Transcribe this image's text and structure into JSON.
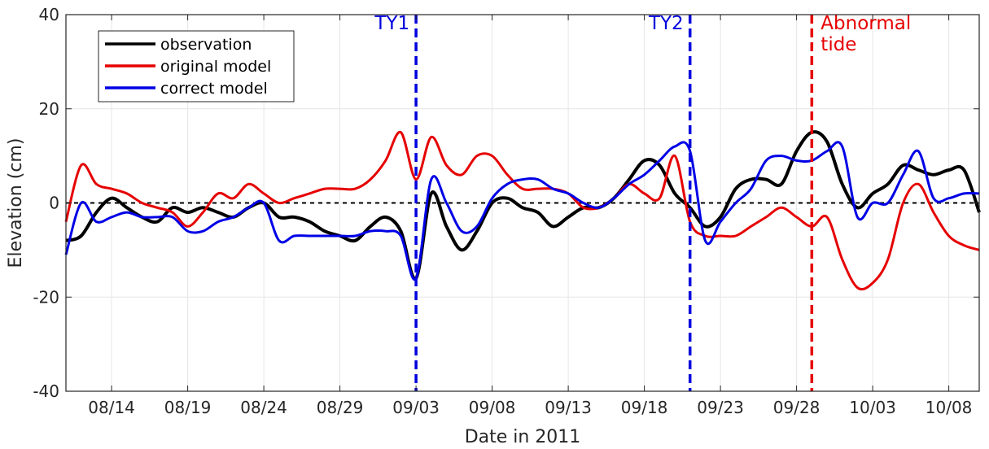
{
  "chart_data": {
    "type": "line",
    "title": "",
    "xlabel": "Date in 2011",
    "ylabel": "Elevation (cm)",
    "xlim": [
      "2011-08-11",
      "2011-10-10"
    ],
    "ylim": [
      -40,
      40
    ],
    "yticks": [
      -40,
      -20,
      0,
      20,
      40
    ],
    "xticks": [
      "08/14",
      "08/19",
      "08/24",
      "08/29",
      "09/03",
      "09/08",
      "09/13",
      "09/18",
      "09/23",
      "09/28",
      "10/03",
      "10/08"
    ],
    "xtick_dates": [
      "2011-08-14",
      "2011-08-19",
      "2011-08-24",
      "2011-08-29",
      "2011-09-03",
      "2011-09-08",
      "2011-09-13",
      "2011-09-18",
      "2011-09-23",
      "2011-09-28",
      "2011-10-03",
      "2011-10-08"
    ],
    "grid": true,
    "legend_position": "top-left",
    "zero_line": {
      "y": 0,
      "color": "#000000",
      "style": "dotted"
    },
    "events": [
      {
        "label": "TY1",
        "date": "2011-09-03",
        "color": "#0000dd"
      },
      {
        "label": "TY2",
        "date": "2011-09-21",
        "color": "#0000dd"
      },
      {
        "label": "Abnormal tide",
        "label_lines": [
          "Abnormal",
          "tide"
        ],
        "date": "2011-09-29",
        "color": "#e60000"
      }
    ],
    "series": [
      {
        "name": "observation",
        "color": "#000000",
        "x": [
          "2011-08-11",
          "2011-08-12",
          "2011-08-13",
          "2011-08-14",
          "2011-08-15",
          "2011-08-16",
          "2011-08-17",
          "2011-08-18",
          "2011-08-19",
          "2011-08-20",
          "2011-08-21",
          "2011-08-22",
          "2011-08-23",
          "2011-08-24",
          "2011-08-25",
          "2011-08-26",
          "2011-08-27",
          "2011-08-28",
          "2011-08-29",
          "2011-08-30",
          "2011-08-31",
          "2011-09-01",
          "2011-09-02",
          "2011-09-03",
          "2011-09-04",
          "2011-09-05",
          "2011-09-06",
          "2011-09-07",
          "2011-09-08",
          "2011-09-09",
          "2011-09-10",
          "2011-09-11",
          "2011-09-12",
          "2011-09-13",
          "2011-09-14",
          "2011-09-15",
          "2011-09-16",
          "2011-09-17",
          "2011-09-18",
          "2011-09-19",
          "2011-09-20",
          "2011-09-21",
          "2011-09-22",
          "2011-09-23",
          "2011-09-24",
          "2011-09-25",
          "2011-09-26",
          "2011-09-27",
          "2011-09-28",
          "2011-09-29",
          "2011-09-30",
          "2011-10-01",
          "2011-10-02",
          "2011-10-03",
          "2011-10-04",
          "2011-10-05",
          "2011-10-06",
          "2011-10-07",
          "2011-10-08",
          "2011-10-09",
          "2011-10-10"
        ],
        "values": [
          -8,
          -7,
          -2,
          1,
          -1,
          -3,
          -4,
          -1,
          -2,
          -1,
          -2,
          -3,
          -1,
          0,
          -3,
          -3,
          -4,
          -6,
          -7,
          -8,
          -5,
          -3,
          -6,
          -16,
          2,
          -5,
          -10,
          -6,
          0,
          1,
          -1,
          -2,
          -5,
          -3,
          -1,
          -1,
          1,
          5,
          9,
          8,
          2,
          -1,
          -5,
          -3,
          3,
          5,
          5,
          4,
          11,
          15,
          13,
          4,
          -1,
          2,
          4,
          8,
          7,
          6,
          7,
          7,
          -2
        ]
      },
      {
        "name": "original model",
        "color": "#e60000",
        "x": [
          "2011-08-11",
          "2011-08-12",
          "2011-08-13",
          "2011-08-14",
          "2011-08-15",
          "2011-08-16",
          "2011-08-17",
          "2011-08-18",
          "2011-08-19",
          "2011-08-20",
          "2011-08-21",
          "2011-08-22",
          "2011-08-23",
          "2011-08-24",
          "2011-08-25",
          "2011-08-26",
          "2011-08-27",
          "2011-08-28",
          "2011-08-29",
          "2011-08-30",
          "2011-08-31",
          "2011-09-01",
          "2011-09-02",
          "2011-09-03",
          "2011-09-04",
          "2011-09-05",
          "2011-09-06",
          "2011-09-07",
          "2011-09-08",
          "2011-09-09",
          "2011-09-10",
          "2011-09-11",
          "2011-09-12",
          "2011-09-13",
          "2011-09-14",
          "2011-09-15",
          "2011-09-16",
          "2011-09-17",
          "2011-09-18",
          "2011-09-19",
          "2011-09-20",
          "2011-09-21",
          "2011-09-22",
          "2011-09-23",
          "2011-09-24",
          "2011-09-25",
          "2011-09-26",
          "2011-09-27",
          "2011-09-28",
          "2011-09-29",
          "2011-09-30",
          "2011-10-01",
          "2011-10-02",
          "2011-10-03",
          "2011-10-04",
          "2011-10-05",
          "2011-10-06",
          "2011-10-07",
          "2011-10-08",
          "2011-10-09",
          "2011-10-10"
        ],
        "values": [
          -4,
          8,
          4,
          3,
          2,
          0,
          -1,
          -2,
          -5,
          -2,
          2,
          1,
          4,
          2,
          0,
          1,
          2,
          3,
          3,
          3,
          5,
          9,
          15,
          5,
          14,
          8,
          6,
          10,
          10,
          6,
          3,
          3,
          3,
          2,
          -1,
          -1,
          1,
          4,
          2,
          1,
          10,
          -4,
          -7,
          -7,
          -7,
          -5,
          -3,
          -1,
          -3,
          -5,
          -3,
          -12,
          -18,
          -17,
          -12,
          0,
          4,
          -2,
          -7,
          -9,
          -10
        ]
      },
      {
        "name": "correct model",
        "color": "#0000e6",
        "x": [
          "2011-08-11",
          "2011-08-12",
          "2011-08-13",
          "2011-08-14",
          "2011-08-15",
          "2011-08-16",
          "2011-08-17",
          "2011-08-18",
          "2011-08-19",
          "2011-08-20",
          "2011-08-21",
          "2011-08-22",
          "2011-08-23",
          "2011-08-24",
          "2011-08-25",
          "2011-08-26",
          "2011-08-27",
          "2011-08-28",
          "2011-08-29",
          "2011-08-30",
          "2011-08-31",
          "2011-09-01",
          "2011-09-02",
          "2011-09-03",
          "2011-09-04",
          "2011-09-05",
          "2011-09-06",
          "2011-09-07",
          "2011-09-08",
          "2011-09-09",
          "2011-09-10",
          "2011-09-11",
          "2011-09-12",
          "2011-09-13",
          "2011-09-14",
          "2011-09-15",
          "2011-09-16",
          "2011-09-17",
          "2011-09-18",
          "2011-09-19",
          "2011-09-20",
          "2011-09-21",
          "2011-09-22",
          "2011-09-23",
          "2011-09-24",
          "2011-09-25",
          "2011-09-26",
          "2011-09-27",
          "2011-09-28",
          "2011-09-29",
          "2011-09-30",
          "2011-10-01",
          "2011-10-02",
          "2011-10-03",
          "2011-10-04",
          "2011-10-05",
          "2011-10-06",
          "2011-10-07",
          "2011-10-08",
          "2011-10-09",
          "2011-10-10"
        ],
        "values": [
          -11,
          0,
          -4,
          -3,
          -2,
          -3,
          -3,
          -3,
          -6,
          -6,
          -4,
          -3,
          -1,
          0,
          -8,
          -7,
          -7,
          -7,
          -7,
          -7,
          -6,
          -6,
          -7,
          -16,
          5,
          0,
          -6,
          -5,
          1,
          4,
          5,
          5,
          3,
          2,
          0,
          -1,
          1,
          4,
          6,
          9,
          12,
          11,
          -8,
          -4,
          0,
          3,
          9,
          10,
          9,
          9,
          11,
          12,
          -3,
          0,
          0,
          6,
          11,
          1,
          1,
          2,
          2
        ]
      }
    ]
  }
}
